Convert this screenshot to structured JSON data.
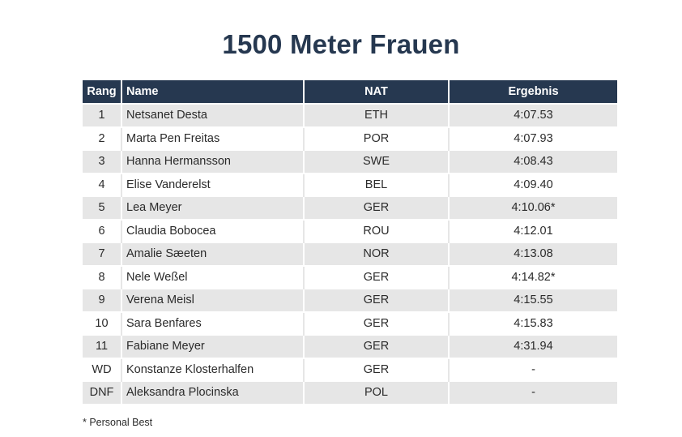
{
  "title": "1500 Meter Frauen",
  "table": {
    "headers": {
      "rank": "Rang",
      "name": "Name",
      "nat": "NAT",
      "result": "Ergebnis"
    },
    "rows": [
      {
        "rank": "1",
        "name": "Netsanet Desta",
        "nat": "ETH",
        "result": "4:07.53"
      },
      {
        "rank": "2",
        "name": "Marta Pen Freitas",
        "nat": "POR",
        "result": "4:07.93"
      },
      {
        "rank": "3",
        "name": "Hanna Hermansson",
        "nat": "SWE",
        "result": "4:08.43"
      },
      {
        "rank": "4",
        "name": "Elise Vanderelst",
        "nat": "BEL",
        "result": "4:09.40"
      },
      {
        "rank": "5",
        "name": "Lea Meyer",
        "nat": "GER",
        "result": "4:10.06*"
      },
      {
        "rank": "6",
        "name": "Claudia Bobocea",
        "nat": "ROU",
        "result": "4:12.01"
      },
      {
        "rank": "7",
        "name": "Amalie Sæeten",
        "nat": "NOR",
        "result": "4:13.08"
      },
      {
        "rank": "8",
        "name": "Nele Weßel",
        "nat": "GER",
        "result": "4:14.82*"
      },
      {
        "rank": "9",
        "name": "Verena Meisl",
        "nat": "GER",
        "result": "4:15.55"
      },
      {
        "rank": "10",
        "name": "Sara Benfares",
        "nat": "GER",
        "result": "4:15.83"
      },
      {
        "rank": "11",
        "name": "Fabiane Meyer",
        "nat": "GER",
        "result": "4:31.94"
      },
      {
        "rank": "WD",
        "name": "Konstanze Klosterhalfen",
        "nat": "GER",
        "result": "-"
      },
      {
        "rank": "DNF",
        "name": "Aleksandra Plocinska",
        "nat": "POL",
        "result": "-"
      }
    ]
  },
  "footnote": "* Personal Best",
  "colors": {
    "header_bg": "#263850",
    "title": "#263850",
    "stripe": "#e6e6e6"
  }
}
